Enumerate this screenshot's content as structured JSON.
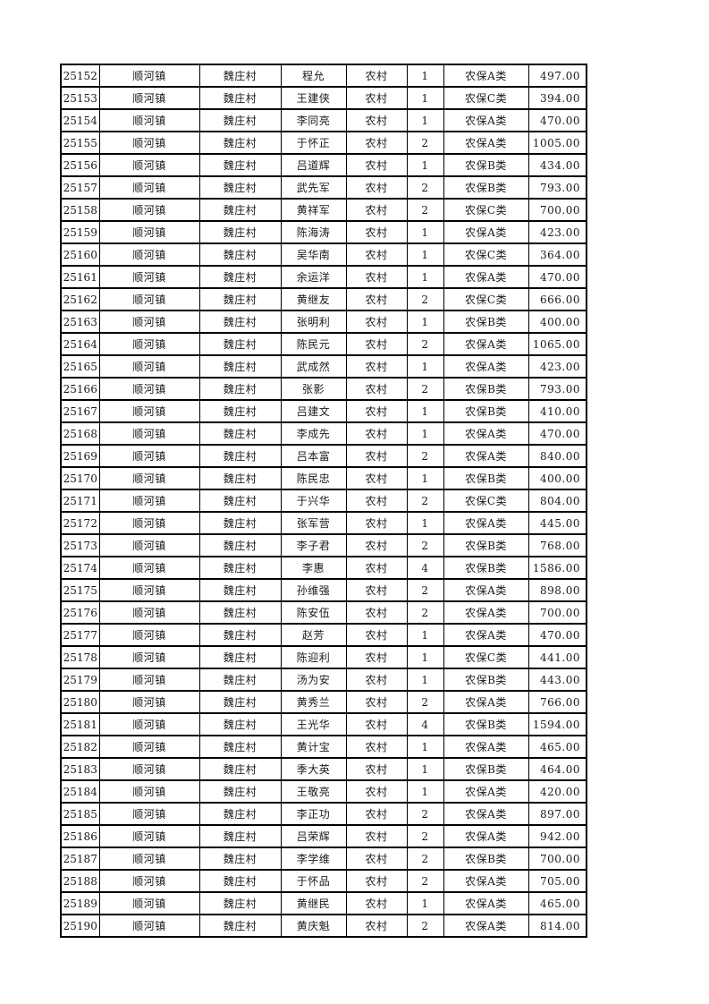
{
  "table": {
    "rows": [
      {
        "id": "25152",
        "town": "顺河镇",
        "village": "魏庄村",
        "name": "程允",
        "residence": "农村",
        "count": "1",
        "category": "农保A类",
        "amount": "497.00"
      },
      {
        "id": "25153",
        "town": "顺河镇",
        "village": "魏庄村",
        "name": "王建侠",
        "residence": "农村",
        "count": "1",
        "category": "农保C类",
        "amount": "394.00"
      },
      {
        "id": "25154",
        "town": "顺河镇",
        "village": "魏庄村",
        "name": "李同亮",
        "residence": "农村",
        "count": "1",
        "category": "农保A类",
        "amount": "470.00"
      },
      {
        "id": "25155",
        "town": "顺河镇",
        "village": "魏庄村",
        "name": "于怀正",
        "residence": "农村",
        "count": "2",
        "category": "农保A类",
        "amount": "1005.00"
      },
      {
        "id": "25156",
        "town": "顺河镇",
        "village": "魏庄村",
        "name": "吕道辉",
        "residence": "农村",
        "count": "1",
        "category": "农保B类",
        "amount": "434.00"
      },
      {
        "id": "25157",
        "town": "顺河镇",
        "village": "魏庄村",
        "name": "武先军",
        "residence": "农村",
        "count": "2",
        "category": "农保B类",
        "amount": "793.00"
      },
      {
        "id": "25158",
        "town": "顺河镇",
        "village": "魏庄村",
        "name": "黄祥军",
        "residence": "农村",
        "count": "2",
        "category": "农保C类",
        "amount": "700.00"
      },
      {
        "id": "25159",
        "town": "顺河镇",
        "village": "魏庄村",
        "name": "陈海涛",
        "residence": "农村",
        "count": "1",
        "category": "农保A类",
        "amount": "423.00"
      },
      {
        "id": "25160",
        "town": "顺河镇",
        "village": "魏庄村",
        "name": "吴华南",
        "residence": "农村",
        "count": "1",
        "category": "农保C类",
        "amount": "364.00"
      },
      {
        "id": "25161",
        "town": "顺河镇",
        "village": "魏庄村",
        "name": "余运洋",
        "residence": "农村",
        "count": "1",
        "category": "农保A类",
        "amount": "470.00"
      },
      {
        "id": "25162",
        "town": "顺河镇",
        "village": "魏庄村",
        "name": "黄继友",
        "residence": "农村",
        "count": "2",
        "category": "农保C类",
        "amount": "666.00"
      },
      {
        "id": "25163",
        "town": "顺河镇",
        "village": "魏庄村",
        "name": "张明利",
        "residence": "农村",
        "count": "1",
        "category": "农保B类",
        "amount": "400.00"
      },
      {
        "id": "25164",
        "town": "顺河镇",
        "village": "魏庄村",
        "name": "陈民元",
        "residence": "农村",
        "count": "2",
        "category": "农保A类",
        "amount": "1065.00"
      },
      {
        "id": "25165",
        "town": "顺河镇",
        "village": "魏庄村",
        "name": "武成然",
        "residence": "农村",
        "count": "1",
        "category": "农保A类",
        "amount": "423.00"
      },
      {
        "id": "25166",
        "town": "顺河镇",
        "village": "魏庄村",
        "name": "张影",
        "residence": "农村",
        "count": "2",
        "category": "农保B类",
        "amount": "793.00"
      },
      {
        "id": "25167",
        "town": "顺河镇",
        "village": "魏庄村",
        "name": "吕建文",
        "residence": "农村",
        "count": "1",
        "category": "农保B类",
        "amount": "410.00"
      },
      {
        "id": "25168",
        "town": "顺河镇",
        "village": "魏庄村",
        "name": "李成先",
        "residence": "农村",
        "count": "1",
        "category": "农保A类",
        "amount": "470.00"
      },
      {
        "id": "25169",
        "town": "顺河镇",
        "village": "魏庄村",
        "name": "吕本富",
        "residence": "农村",
        "count": "2",
        "category": "农保A类",
        "amount": "840.00"
      },
      {
        "id": "25170",
        "town": "顺河镇",
        "village": "魏庄村",
        "name": "陈民忠",
        "residence": "农村",
        "count": "1",
        "category": "农保B类",
        "amount": "400.00"
      },
      {
        "id": "25171",
        "town": "顺河镇",
        "village": "魏庄村",
        "name": "于兴华",
        "residence": "农村",
        "count": "2",
        "category": "农保C类",
        "amount": "804.00"
      },
      {
        "id": "25172",
        "town": "顺河镇",
        "village": "魏庄村",
        "name": "张军营",
        "residence": "农村",
        "count": "1",
        "category": "农保A类",
        "amount": "445.00"
      },
      {
        "id": "25173",
        "town": "顺河镇",
        "village": "魏庄村",
        "name": "李子君",
        "residence": "农村",
        "count": "2",
        "category": "农保B类",
        "amount": "768.00"
      },
      {
        "id": "25174",
        "town": "顺河镇",
        "village": "魏庄村",
        "name": "李惠",
        "residence": "农村",
        "count": "4",
        "category": "农保B类",
        "amount": "1586.00"
      },
      {
        "id": "25175",
        "town": "顺河镇",
        "village": "魏庄村",
        "name": "孙维强",
        "residence": "农村",
        "count": "2",
        "category": "农保A类",
        "amount": "898.00"
      },
      {
        "id": "25176",
        "town": "顺河镇",
        "village": "魏庄村",
        "name": "陈安伍",
        "residence": "农村",
        "count": "2",
        "category": "农保A类",
        "amount": "700.00"
      },
      {
        "id": "25177",
        "town": "顺河镇",
        "village": "魏庄村",
        "name": "赵芳",
        "residence": "农村",
        "count": "1",
        "category": "农保A类",
        "amount": "470.00"
      },
      {
        "id": "25178",
        "town": "顺河镇",
        "village": "魏庄村",
        "name": "陈迎利",
        "residence": "农村",
        "count": "1",
        "category": "农保C类",
        "amount": "441.00"
      },
      {
        "id": "25179",
        "town": "顺河镇",
        "village": "魏庄村",
        "name": "汤为安",
        "residence": "农村",
        "count": "1",
        "category": "农保B类",
        "amount": "443.00"
      },
      {
        "id": "25180",
        "town": "顺河镇",
        "village": "魏庄村",
        "name": "黄秀兰",
        "residence": "农村",
        "count": "2",
        "category": "农保A类",
        "amount": "766.00"
      },
      {
        "id": "25181",
        "town": "顺河镇",
        "village": "魏庄村",
        "name": "王光华",
        "residence": "农村",
        "count": "4",
        "category": "农保B类",
        "amount": "1594.00"
      },
      {
        "id": "25182",
        "town": "顺河镇",
        "village": "魏庄村",
        "name": "黄计宝",
        "residence": "农村",
        "count": "1",
        "category": "农保A类",
        "amount": "465.00"
      },
      {
        "id": "25183",
        "town": "顺河镇",
        "village": "魏庄村",
        "name": "季大英",
        "residence": "农村",
        "count": "1",
        "category": "农保B类",
        "amount": "464.00"
      },
      {
        "id": "25184",
        "town": "顺河镇",
        "village": "魏庄村",
        "name": "王敬亮",
        "residence": "农村",
        "count": "1",
        "category": "农保A类",
        "amount": "420.00"
      },
      {
        "id": "25185",
        "town": "顺河镇",
        "village": "魏庄村",
        "name": "李正功",
        "residence": "农村",
        "count": "2",
        "category": "农保A类",
        "amount": "897.00"
      },
      {
        "id": "25186",
        "town": "顺河镇",
        "village": "魏庄村",
        "name": "吕荣辉",
        "residence": "农村",
        "count": "2",
        "category": "农保A类",
        "amount": "942.00"
      },
      {
        "id": "25187",
        "town": "顺河镇",
        "village": "魏庄村",
        "name": "李学维",
        "residence": "农村",
        "count": "2",
        "category": "农保B类",
        "amount": "700.00"
      },
      {
        "id": "25188",
        "town": "顺河镇",
        "village": "魏庄村",
        "name": "于怀品",
        "residence": "农村",
        "count": "2",
        "category": "农保A类",
        "amount": "705.00"
      },
      {
        "id": "25189",
        "town": "顺河镇",
        "village": "魏庄村",
        "name": "黄继民",
        "residence": "农村",
        "count": "1",
        "category": "农保A类",
        "amount": "465.00"
      },
      {
        "id": "25190",
        "town": "顺河镇",
        "village": "魏庄村",
        "name": "黄庆魁",
        "residence": "农村",
        "count": "2",
        "category": "农保A类",
        "amount": "814.00"
      }
    ]
  }
}
